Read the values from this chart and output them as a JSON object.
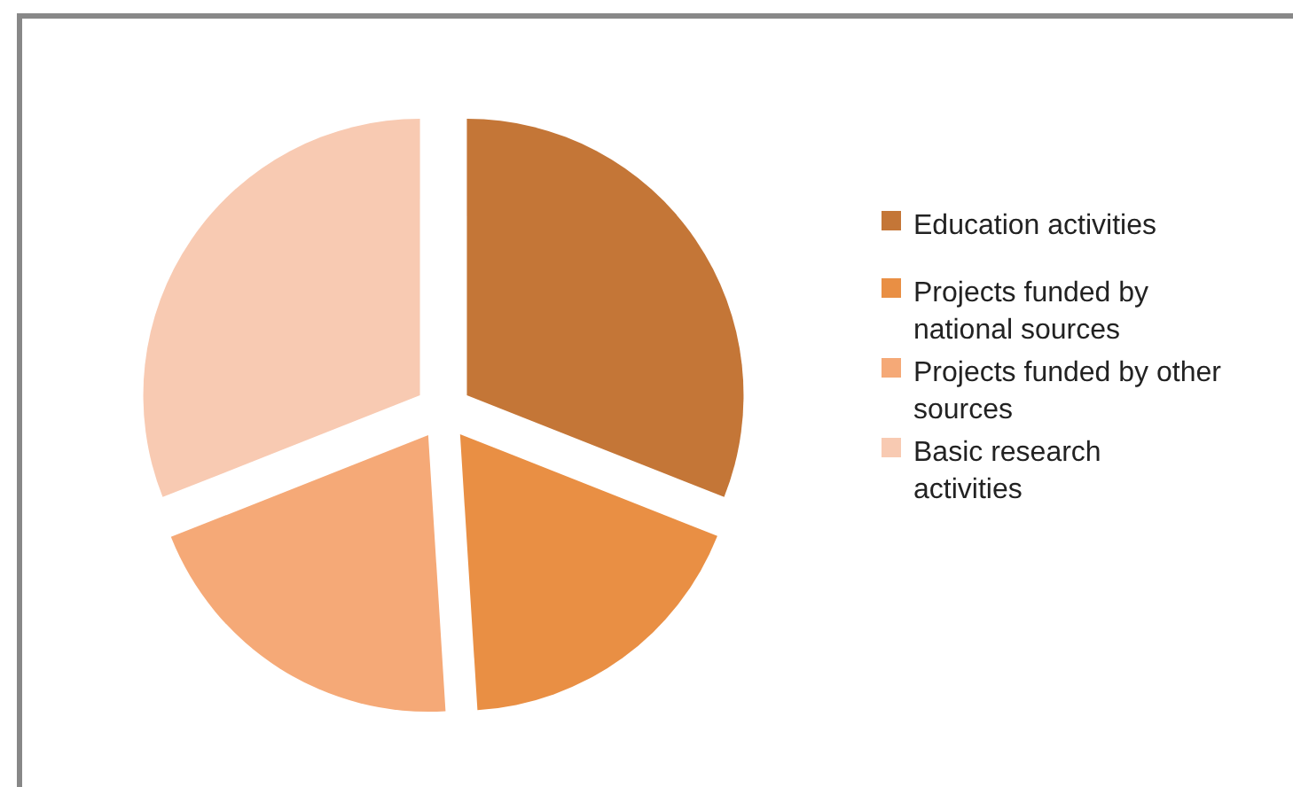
{
  "chart_data": {
    "type": "pie",
    "categories": [
      "Education activities",
      "Projects funded by national sources",
      "Projects funded by other sources",
      "Basic research activities"
    ],
    "values": [
      31,
      18,
      20,
      31
    ],
    "colors": [
      "#c47637",
      "#e98f44",
      "#f5a977",
      "#f8cab2"
    ],
    "legend": "right"
  }
}
